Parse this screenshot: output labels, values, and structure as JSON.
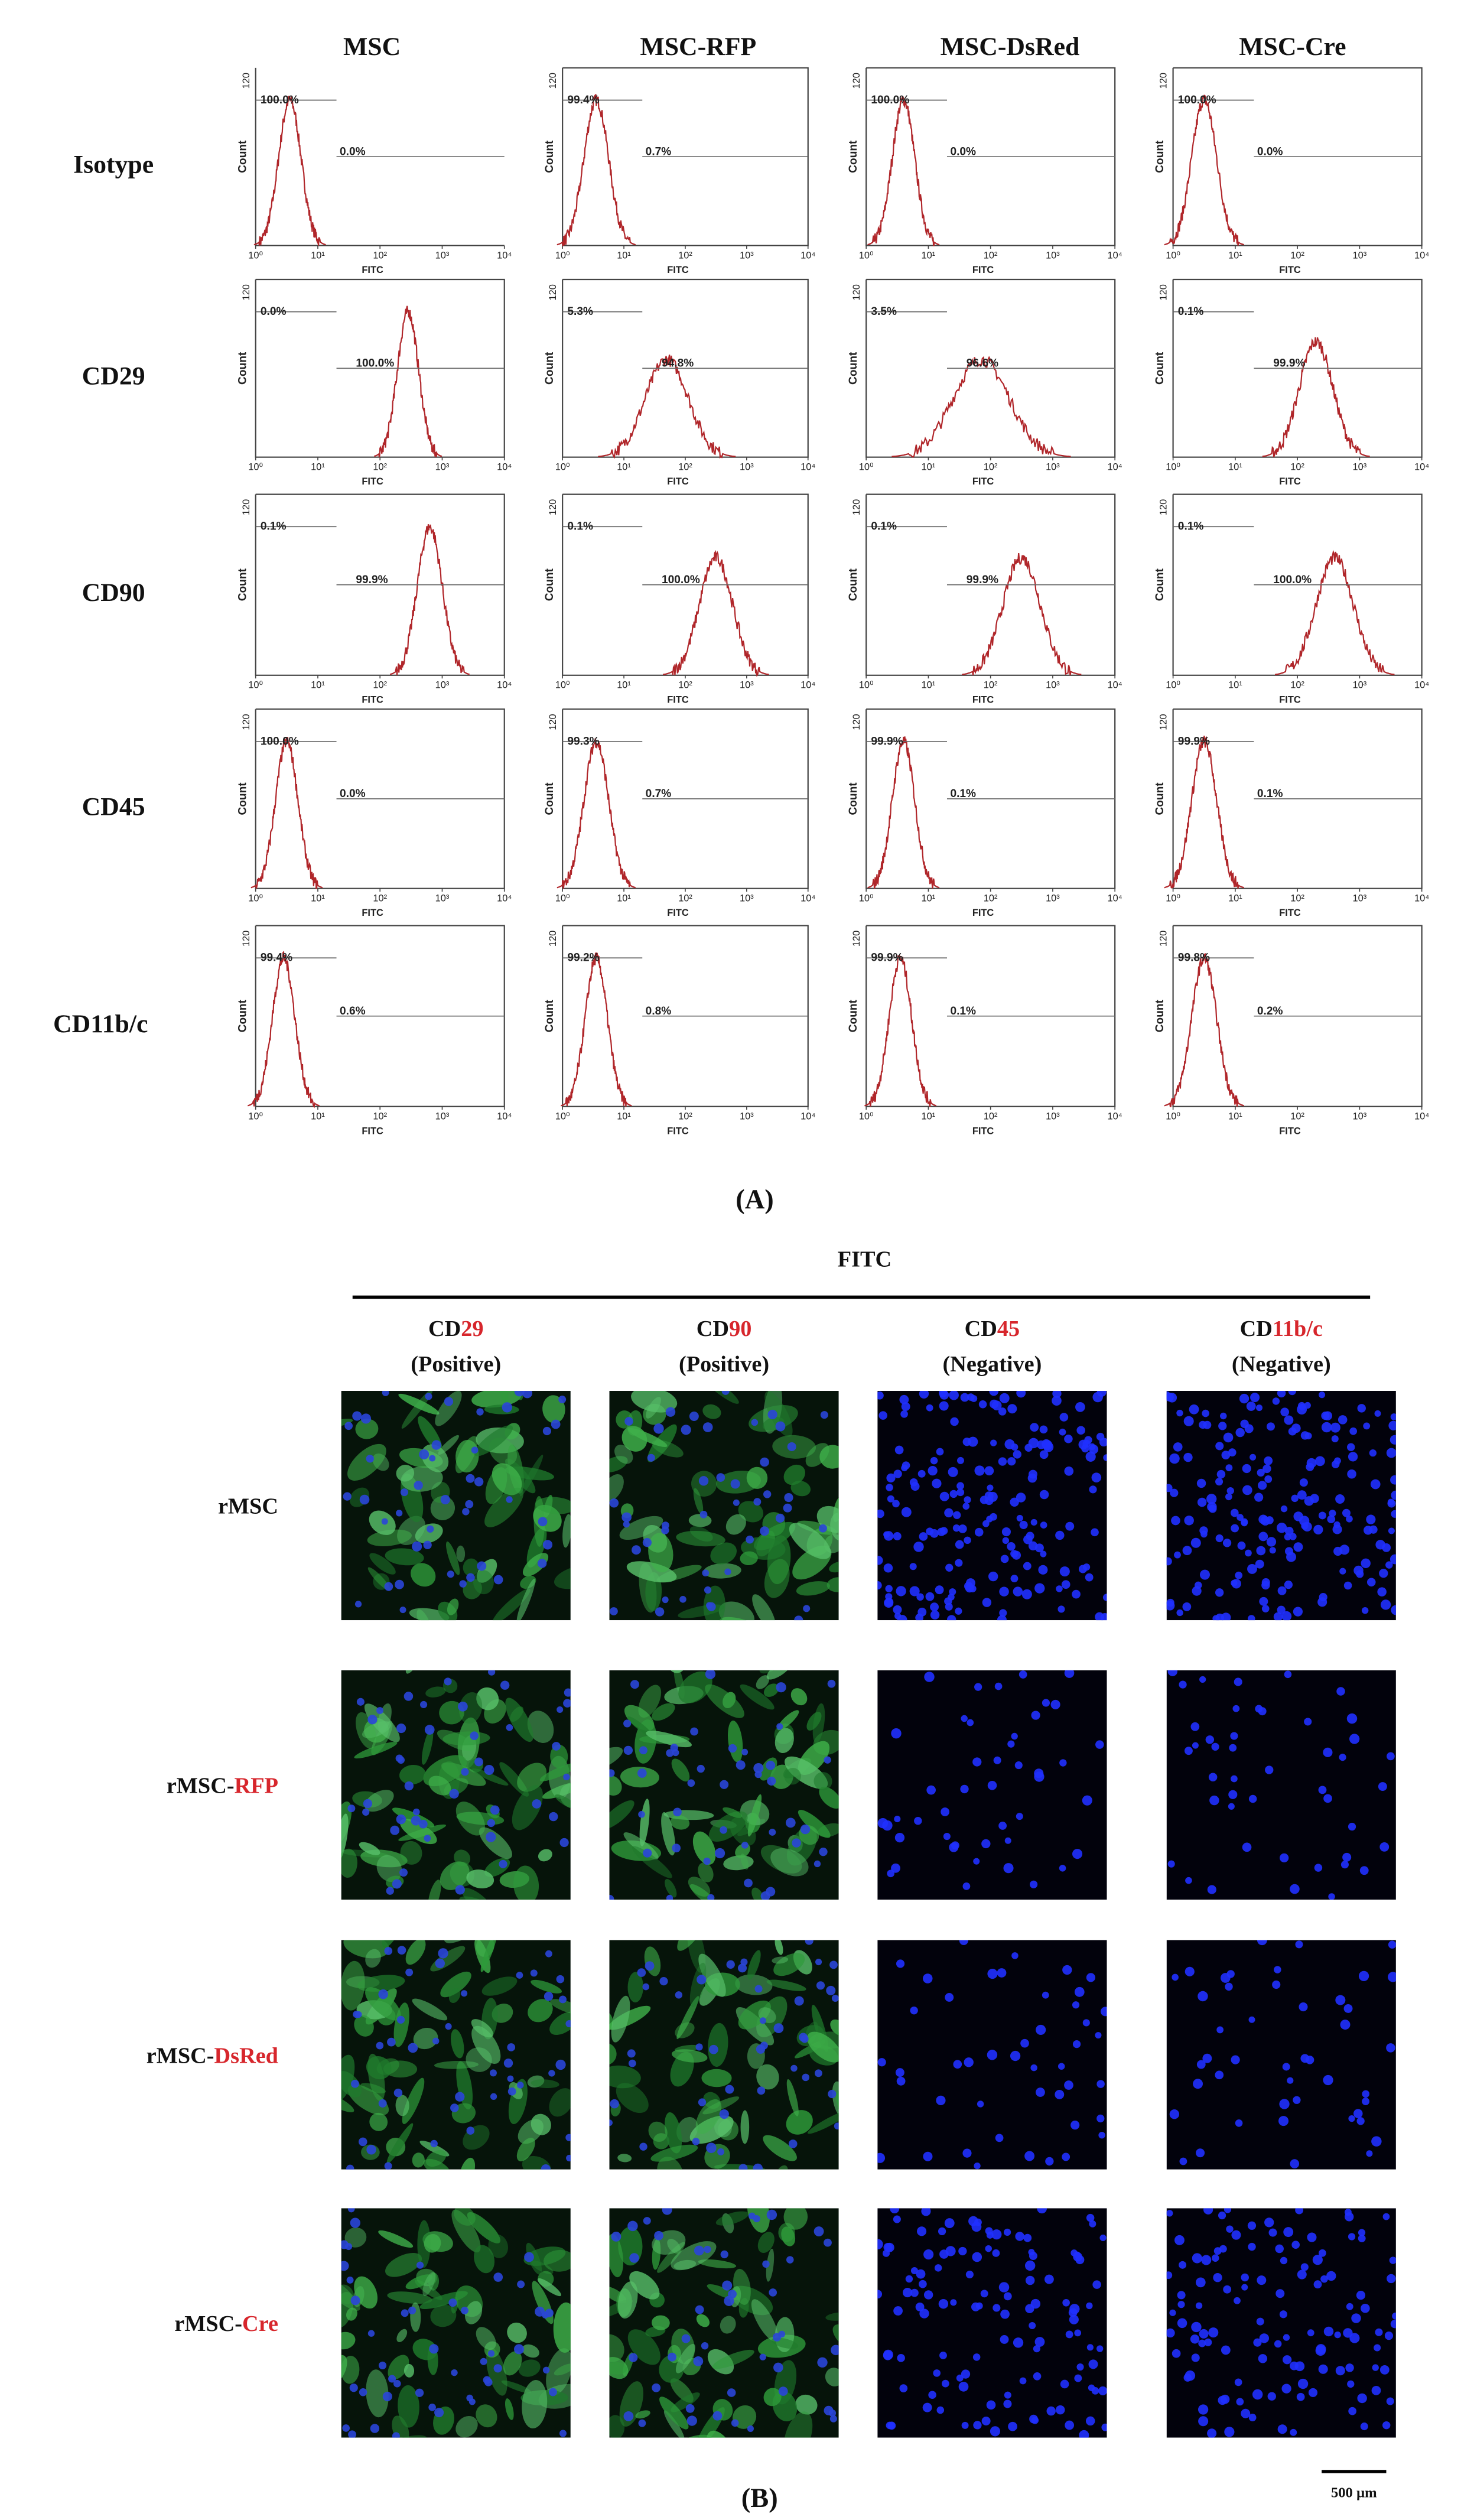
{
  "panel_a": {
    "column_headers": [
      "MSC",
      "MSC-RFP",
      "MSC-DsRed",
      "MSC-Cre"
    ],
    "row_labels": [
      "Isotype",
      "CD29",
      "CD90",
      "CD45",
      "CD11b/c"
    ],
    "y_tick": "120",
    "y_label": "Count",
    "x_label": "FITC",
    "x_ticks": [
      "10⁰",
      "10¹",
      "10²",
      "10³",
      "10⁴"
    ],
    "histograms": [
      [
        {
          "left": "100.0%",
          "right": "0.0%"
        },
        {
          "left": "99.4%",
          "right": "0.7%"
        },
        {
          "left": "100.0%",
          "right": "0.0%"
        },
        {
          "left": "100.0%",
          "right": "0.0%"
        }
      ],
      [
        {
          "left": "0.0%",
          "right": "100.0%"
        },
        {
          "left": "5.3%",
          "right": "94.8%"
        },
        {
          "left": "3.5%",
          "right": "96.6%"
        },
        {
          "left": "0.1%",
          "right": "99.9%"
        }
      ],
      [
        {
          "left": "0.1%",
          "right": "99.9%"
        },
        {
          "left": "0.1%",
          "right": "100.0%"
        },
        {
          "left": "0.1%",
          "right": "99.9%"
        },
        {
          "left": "0.1%",
          "right": "100.0%"
        }
      ],
      [
        {
          "left": "100.0%",
          "right": "0.0%"
        },
        {
          "left": "99.3%",
          "right": "0.7%"
        },
        {
          "left": "99.9%",
          "right": "0.1%"
        },
        {
          "left": "99.9%",
          "right": "0.1%"
        }
      ],
      [
        {
          "left": "99.4%",
          "right": "0.6%"
        },
        {
          "left": "99.2%",
          "right": "0.8%"
        },
        {
          "left": "99.9%",
          "right": "0.1%"
        },
        {
          "left": "99.8%",
          "right": "0.2%"
        }
      ]
    ],
    "label": "(A)"
  },
  "panel_b": {
    "title": "FITC",
    "column_headers": [
      {
        "text": "CD",
        "highlight": "29",
        "note": "(Positive)"
      },
      {
        "text": "CD",
        "highlight": "90",
        "note": "(Positive)"
      },
      {
        "text": "CD",
        "highlight": "45",
        "note": "(Negative)"
      },
      {
        "text": "CD",
        "highlight": "11b/c",
        "note": "(Negative)"
      }
    ],
    "row_labels": [
      {
        "text": "rMSC"
      },
      {
        "text": "rMSC-",
        "highlight": "RFP"
      },
      {
        "text": "rMSC-",
        "highlight": "DsRed"
      },
      {
        "text": "rMSC-",
        "highlight": "Cre"
      }
    ],
    "scale_bar": "500 µm",
    "label": "(B)"
  }
}
